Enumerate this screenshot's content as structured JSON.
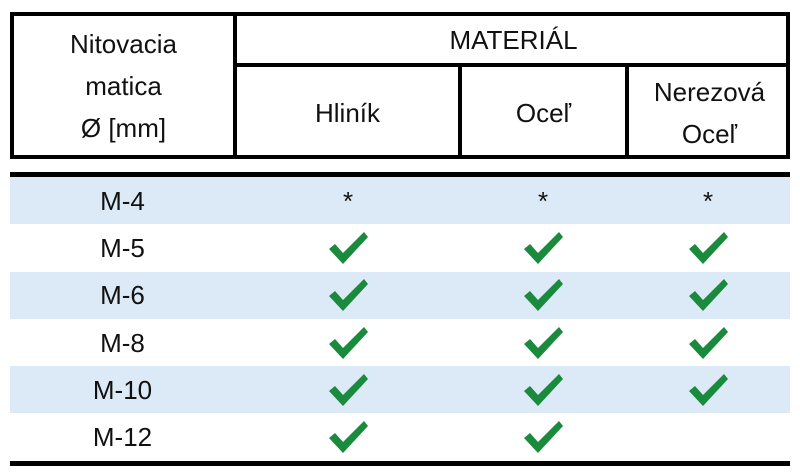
{
  "header": {
    "first_column": [
      "Nitovacia",
      "matica",
      "Ø [mm]"
    ],
    "group": "MATERIÁL",
    "columns": [
      [
        "Hliník"
      ],
      [
        "Oceľ"
      ],
      [
        "Nerezová",
        "Oceľ"
      ]
    ]
  },
  "table": {
    "rows": [
      {
        "size": "M-4",
        "cells": [
          "*",
          "*",
          "*"
        ]
      },
      {
        "size": "M-5",
        "cells": [
          true,
          true,
          true
        ]
      },
      {
        "size": "M-6",
        "cells": [
          true,
          true,
          true
        ]
      },
      {
        "size": "M-8",
        "cells": [
          true,
          true,
          true
        ]
      },
      {
        "size": "M-10",
        "cells": [
          true,
          true,
          true
        ]
      },
      {
        "size": "M-12",
        "cells": [
          true,
          true,
          null
        ]
      }
    ]
  }
}
